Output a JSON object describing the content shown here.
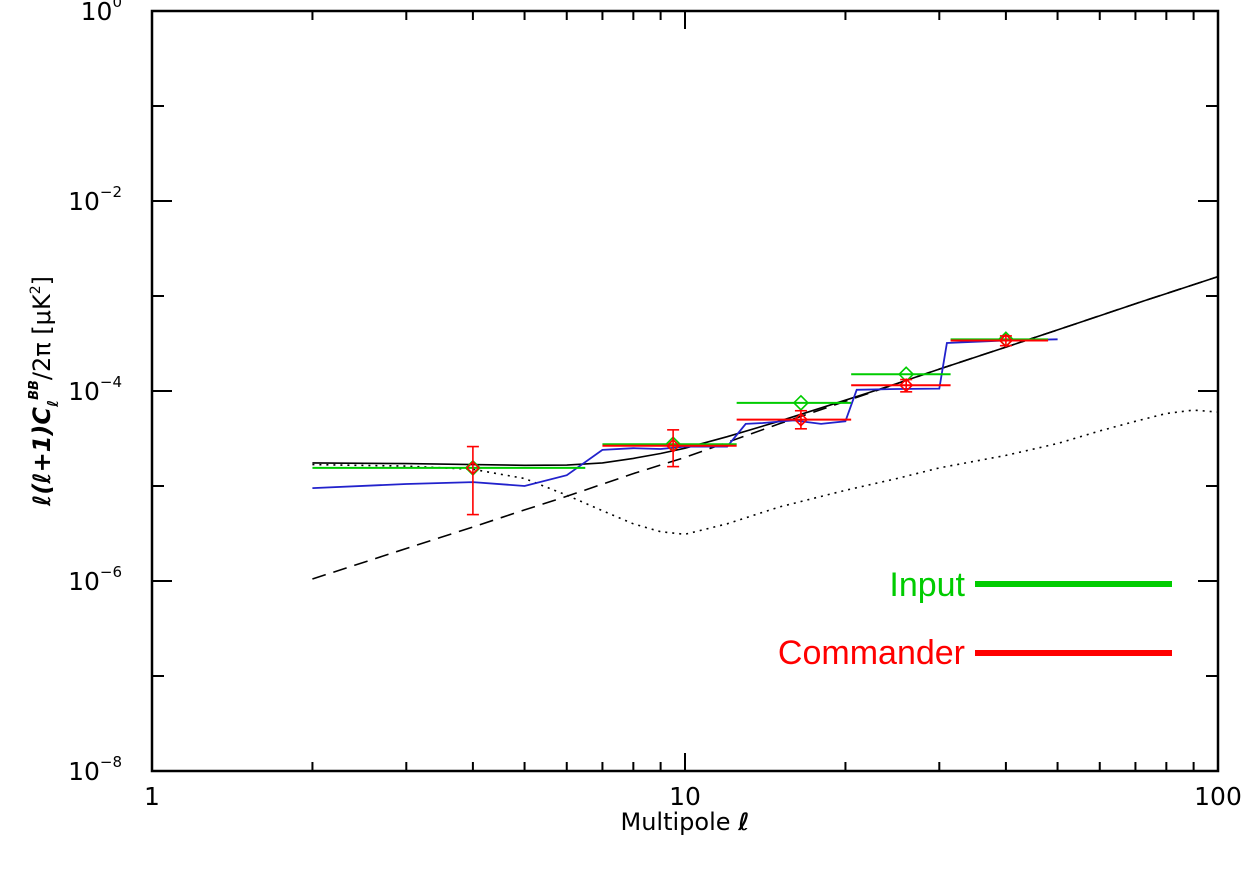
{
  "chart_data": {
    "type": "line",
    "x_scale": "log",
    "y_scale": "log",
    "xlim": [
      1,
      100
    ],
    "ylim": [
      1e-08,
      1
    ],
    "xlabel": "Multipole",
    "xlabel_symbol": "ℓ",
    "ylabel": "ℓ(ℓ+1)Cℓ^BB/2π [μK²]",
    "ylabel_parts": {
      "prefix": "ℓ(ℓ+1)C",
      "sub": "ℓ",
      "sup": "BB",
      "rest": "/2π  [μK",
      "sup2": "2",
      "close": "]"
    },
    "x_ticks": [
      {
        "value": 1,
        "label": "1"
      },
      {
        "value": 10,
        "label": "10"
      },
      {
        "value": 100,
        "label": "100"
      }
    ],
    "y_ticks": [
      {
        "value": 1,
        "base": "10",
        "exp": "0"
      },
      {
        "value": 0.01,
        "base": "10",
        "exp": "−2"
      },
      {
        "value": 0.0001,
        "base": "10",
        "exp": "−4"
      },
      {
        "value": 1e-06,
        "base": "10",
        "exp": "−6"
      },
      {
        "value": 1e-08,
        "base": "10",
        "exp": "−8"
      }
    ],
    "legend": [
      {
        "name": "Input",
        "color": "#00cc00"
      },
      {
        "name": "Commander",
        "color": "#ff0000"
      }
    ],
    "colors": {
      "input": "#00cc00",
      "commander": "#ff0000",
      "blue": "#2222cc",
      "black": "#000000"
    },
    "series": [
      {
        "style": "solid",
        "color": "#000000",
        "points": [
          [
            2,
            1.75e-05
          ],
          [
            3,
            1.72e-05
          ],
          [
            4,
            1.68e-05
          ],
          [
            5,
            1.65e-05
          ],
          [
            6,
            1.66e-05
          ],
          [
            7,
            1.75e-05
          ],
          [
            8,
            1.95e-05
          ],
          [
            9,
            2.2e-05
          ],
          [
            10,
            2.5e-05
          ],
          [
            12,
            3.3e-05
          ],
          [
            15,
            4.8e-05
          ],
          [
            20,
            8e-05
          ],
          [
            25,
            0.00012
          ],
          [
            30,
            0.00017
          ],
          [
            40,
            0.00029
          ],
          [
            50,
            0.00044
          ],
          [
            60,
            0.00062
          ],
          [
            70,
            0.00083
          ],
          [
            80,
            0.00106
          ],
          [
            100,
            0.0016
          ]
        ]
      },
      {
        "style": "dashed",
        "color": "#000000",
        "points": [
          [
            2,
            1.05e-06
          ],
          [
            3,
            2.2e-06
          ],
          [
            4,
            3.7e-06
          ],
          [
            5,
            5.6e-06
          ],
          [
            6,
            7.8e-06
          ],
          [
            8,
            1.35e-05
          ],
          [
            10,
            2e-05
          ],
          [
            15,
            4.5e-05
          ],
          [
            20,
            7.8e-05
          ],
          [
            30,
            0.00017
          ],
          [
            40,
            0.00029
          ],
          [
            50,
            0.00044
          ],
          [
            70,
            0.00083
          ],
          [
            100,
            0.0016
          ]
        ]
      },
      {
        "style": "dotted",
        "color": "#000000",
        "points": [
          [
            2,
            1.68e-05
          ],
          [
            3,
            1.62e-05
          ],
          [
            4,
            1.5e-05
          ],
          [
            5,
            1.2e-05
          ],
          [
            6,
            8e-06
          ],
          [
            7,
            5.5e-06
          ],
          [
            8,
            4e-06
          ],
          [
            9,
            3.3e-06
          ],
          [
            10,
            3.1e-06
          ],
          [
            12,
            4e-06
          ],
          [
            15,
            6e-06
          ],
          [
            20,
            9e-06
          ],
          [
            25,
            1.2e-05
          ],
          [
            30,
            1.55e-05
          ],
          [
            40,
            2.1e-05
          ],
          [
            50,
            2.8e-05
          ],
          [
            60,
            3.8e-05
          ],
          [
            70,
            4.8e-05
          ],
          [
            80,
            5.8e-05
          ],
          [
            90,
            6.3e-05
          ],
          [
            100,
            6e-05
          ]
        ]
      },
      {
        "style": "solid",
        "color": "#2222cc",
        "points": [
          [
            2,
            9.5e-06
          ],
          [
            3,
            1.05e-05
          ],
          [
            4,
            1.1e-05
          ],
          [
            5,
            1e-05
          ],
          [
            6,
            1.3e-05
          ],
          [
            7,
            2.4e-05
          ],
          [
            8,
            2.5e-05
          ],
          [
            9,
            2.45e-05
          ],
          [
            10,
            2.6e-05
          ],
          [
            12,
            2.6e-05
          ],
          [
            13,
            4.5e-05
          ],
          [
            14,
            4.6e-05
          ],
          [
            16,
            4.9e-05
          ],
          [
            18,
            4.5e-05
          ],
          [
            20,
            4.8e-05
          ],
          [
            21,
            0.000103
          ],
          [
            25,
            0.000105
          ],
          [
            30,
            0.000106
          ],
          [
            31,
            0.00032
          ],
          [
            40,
            0.00034
          ],
          [
            50,
            0.00035
          ]
        ]
      }
    ],
    "input_bins": [
      {
        "x_lo": 2,
        "x_hi": 6.5,
        "y": 1.55e-05,
        "x_c": 4,
        "has_marker": true
      },
      {
        "x_lo": 7,
        "x_hi": 12.5,
        "y": 2.75e-05,
        "x_c": 9.5,
        "has_marker": true
      },
      {
        "x_lo": 12.5,
        "x_hi": 20.5,
        "y": 7.5e-05,
        "x_c": 16.5,
        "has_marker": true
      },
      {
        "x_lo": 20.5,
        "x_hi": 31.5,
        "y": 0.00015,
        "x_c": 26,
        "has_marker": true
      },
      {
        "x_lo": 31.5,
        "x_hi": 48,
        "y": 0.00035,
        "x_c": 40,
        "has_marker": true
      }
    ],
    "commander_bins": [
      {
        "x_lo": 7,
        "x_hi": 12.5,
        "y": 2.65e-05,
        "x_c": 9.5,
        "err_lo": 1.6e-05,
        "err_hi": 3.9e-05
      },
      {
        "x_lo": 12.5,
        "x_hi": 20.5,
        "y": 5e-05,
        "x_c": 16.5,
        "err_lo": 4e-05,
        "err_hi": 6.2e-05
      },
      {
        "x_lo": 20.5,
        "x_hi": 31.5,
        "y": 0.000115,
        "x_c": 26,
        "err_lo": 9.8e-05,
        "err_hi": 0.000132
      },
      {
        "x_lo": 31.5,
        "x_hi": 48,
        "y": 0.00034,
        "x_c": 40,
        "err_lo": 0.0003,
        "err_hi": 0.00038
      }
    ],
    "commander_first_point": {
      "x": 4,
      "y": 1.55e-05,
      "err_lo": 5e-06,
      "err_hi": 2.6e-05
    }
  }
}
